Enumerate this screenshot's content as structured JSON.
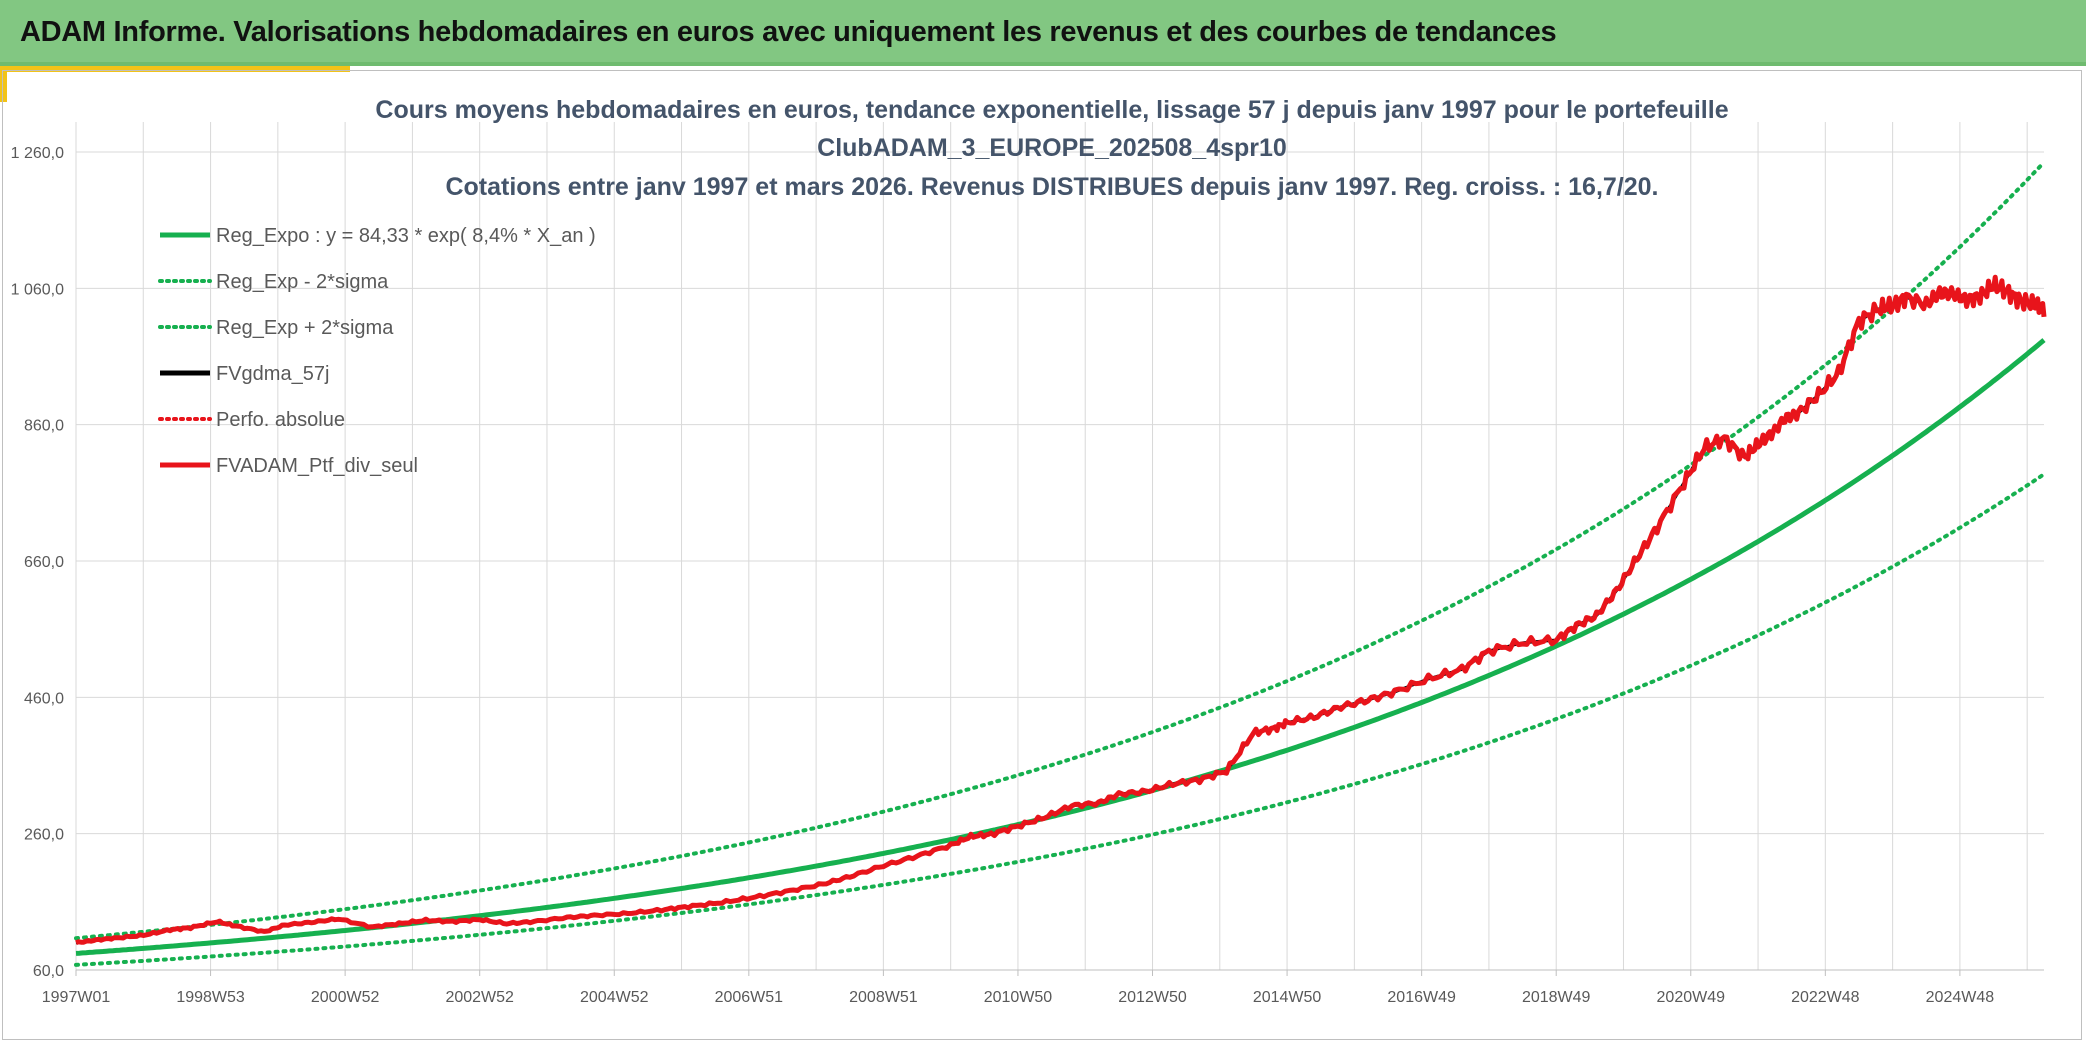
{
  "header": {
    "title": "ADAM Informe. Valorisations hebdomadaires en euros avec uniquement les revenus et des courbes de tendances"
  },
  "colors": {
    "header_bg": "#82c782",
    "accent": "#f2c318",
    "trend_green": "#16b04f",
    "portfolio_red": "#e8141b",
    "smooth_black": "#000000"
  },
  "chart_data": {
    "type": "line",
    "title_lines": [
      "Cours moyens hebdomadaires en euros, tendance exponentielle, lissage 57 j depuis janv 1997 pour le portefeuille",
      "ClubADAM_3_EUROPE_202508_4spr10",
      "Cotations entre janv 1997 et mars 2026. Revenus DISTRIBUES depuis janv 1997. Reg. croiss. : 16,7/20."
    ],
    "xlabel": "",
    "ylabel": "",
    "x_range": [
      1997.0,
      2026.25
    ],
    "ylim": [
      60,
      1260
    ],
    "yticks": [
      60,
      260,
      460,
      660,
      860,
      1060,
      1260
    ],
    "ytick_labels": [
      "60,0",
      "260,0",
      "460,0",
      "660,0",
      "860,0",
      "1 060,0",
      "1 260,0"
    ],
    "xticks": [
      1997.0,
      1999.0,
      2001.0,
      2003.0,
      2005.0,
      2007.0,
      2009.0,
      2011.0,
      2013.0,
      2015.0,
      2017.0,
      2019.0,
      2021.0,
      2023.0,
      2025.0
    ],
    "xtick_labels": [
      "1997W01",
      "1998W53",
      "2000W52",
      "2002W52",
      "2004W52",
      "2006W51",
      "2008W51",
      "2010W50",
      "2012W50",
      "2014W50",
      "2016W49",
      "2018W49",
      "2020W49",
      "2022W48",
      "2024W48"
    ],
    "grid": true,
    "legend_position": "top-left",
    "regression": {
      "a": 84.33,
      "rate": 0.084,
      "sigma_low_factor": 0.8,
      "sigma_high_factor": 1.265
    },
    "series": [
      {
        "name": "Reg_Expo : y = 84,33 * exp( 8,4% *  X_an )",
        "color": "#16b04f",
        "style": "solid",
        "kind": "reg"
      },
      {
        "name": "Reg_Exp - 2*sigma",
        "color": "#16b04f",
        "style": "dotted",
        "kind": "reg_low"
      },
      {
        "name": "Reg_Exp + 2*sigma",
        "color": "#16b04f",
        "style": "dotted",
        "kind": "reg_high"
      },
      {
        "name": "FVgdma_57j",
        "color": "#000000",
        "style": "solid",
        "kind": "smooth"
      },
      {
        "name": "Perfo. absolue",
        "color": "#e8141b",
        "style": "dotted",
        "kind": "legend_only"
      },
      {
        "name": "FVADAM_Ptf_div_seul",
        "color": "#e8141b",
        "style": "solid",
        "kind": "portfolio"
      }
    ],
    "portfolio": {
      "x": [
        1997.0,
        1997.3,
        1997.6,
        1998.0,
        1998.4,
        1998.7,
        1999.1,
        1999.4,
        1999.8,
        2000.1,
        2000.5,
        2000.9,
        2001.4,
        2001.8,
        2002.2,
        2002.6,
        2003.0,
        2003.4,
        2003.8,
        2004.3,
        2004.7,
        2005.2,
        2005.7,
        2006.1,
        2006.6,
        2007.1,
        2007.6,
        2008.1,
        2008.5,
        2009.0,
        2009.5,
        2010.0,
        2010.3,
        2010.6,
        2011.0,
        2011.4,
        2011.8,
        2012.2,
        2012.5,
        2012.9,
        2013.3,
        2013.7,
        2014.1,
        2014.5,
        2014.8,
        2015.0,
        2015.4,
        2015.8,
        2016.2,
        2016.6,
        2017.1,
        2017.6,
        2018.0,
        2018.5,
        2019.0,
        2019.3,
        2019.6,
        2019.9,
        2020.2,
        2020.5,
        2020.9,
        2021.2,
        2021.5,
        2021.8,
        2022.0,
        2022.2,
        2022.4,
        2022.6,
        2022.9,
        2023.2,
        2023.5,
        2023.8,
        2024.0,
        2024.2,
        2024.5,
        2024.7,
        2024.9,
        2025.1,
        2025.3,
        2025.5,
        2025.7,
        2025.9,
        2026.1,
        2026.25
      ],
      "y": [
        100,
        104,
        107,
        111,
        119,
        122,
        131,
        124,
        116,
        126,
        130,
        135,
        123,
        128,
        133,
        131,
        134,
        128,
        131,
        137,
        140,
        143,
        148,
        153,
        159,
        167,
        176,
        186,
        197,
        213,
        227,
        243,
        256,
        259,
        271,
        284,
        301,
        305,
        318,
        322,
        333,
        339,
        352,
        408,
        414,
        423,
        431,
        446,
        456,
        468,
        487,
        501,
        528,
        540,
        544,
        565,
        580,
        617,
        664,
        709,
        775,
        826,
        840,
        812,
        831,
        847,
        869,
        877,
        904,
        936,
        1012,
        1030,
        1034,
        1047,
        1036,
        1053,
        1052,
        1043,
        1049,
        1064,
        1056,
        1042,
        1036,
        1028
      ]
    }
  },
  "legend_items": [
    "Reg_Expo : y = 84,33 * exp( 8,4% *  X_an )",
    "Reg_Exp - 2*sigma",
    "Reg_Exp + 2*sigma",
    "FVgdma_57j",
    "Perfo. absolue",
    "FVADAM_Ptf_div_seul"
  ]
}
